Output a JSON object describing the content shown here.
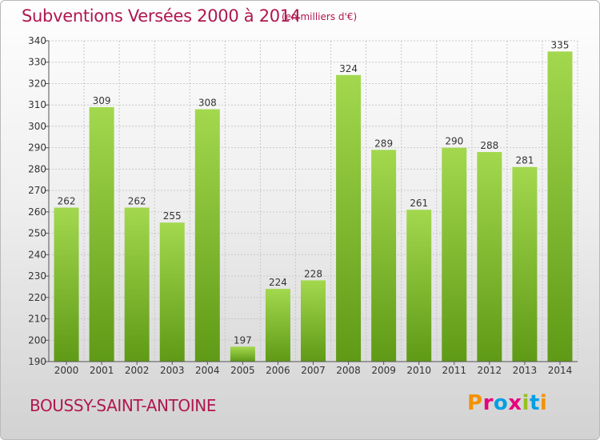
{
  "title": "Subventions Versées 2000 à 2014",
  "unit_label": "(en milliers d'€)",
  "commune": "BOUSSY-SAINT-ANTOINE",
  "logo_text": "Proxiti",
  "colors": {
    "title": "#b0174f",
    "bar_top": "#a3d84e",
    "bar_bottom": "#5f9a16",
    "logo": [
      "#f39200",
      "#e6007e",
      "#009fe3",
      "#e6007e",
      "#95c11f",
      "#009fe3",
      "#f39200"
    ]
  },
  "chart_data": {
    "type": "bar",
    "title": "Subventions Versées 2000 à 2014",
    "ylabel": "",
    "xlabel": "",
    "categories": [
      "2000",
      "2001",
      "2002",
      "2003",
      "2004",
      "2005",
      "2006",
      "2007",
      "2008",
      "2009",
      "2010",
      "2011",
      "2012",
      "2013",
      "2014"
    ],
    "values": [
      262,
      309,
      262,
      255,
      308,
      197,
      224,
      228,
      324,
      289,
      261,
      290,
      288,
      281,
      335
    ],
    "ylim": [
      190,
      340
    ],
    "yticks": [
      190,
      200,
      210,
      220,
      230,
      240,
      250,
      260,
      270,
      280,
      290,
      300,
      310,
      320,
      330,
      340
    ],
    "grid": true,
    "data_labels": true
  }
}
